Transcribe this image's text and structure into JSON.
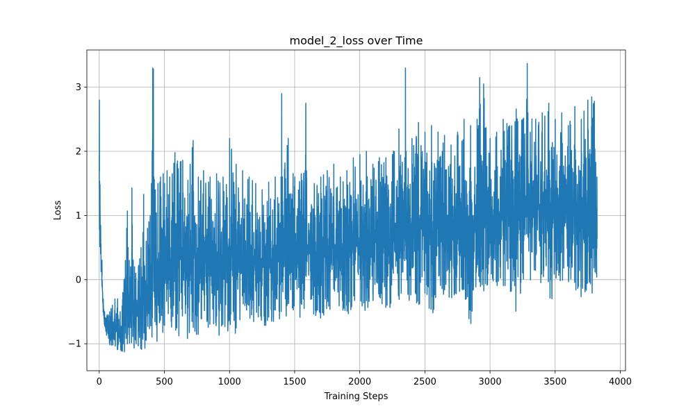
{
  "chart_data": {
    "type": "line",
    "title": "model_2_loss over Time",
    "xlabel": "Training Steps",
    "ylabel": "Loss",
    "xlim": [
      -95,
      4040
    ],
    "ylim": [
      -1.42,
      3.58
    ],
    "x_ticks": [
      0,
      500,
      1000,
      1500,
      2000,
      2500,
      3000,
      3500,
      4000
    ],
    "x_tick_labels": [
      "0",
      "500",
      "1000",
      "1500",
      "2000",
      "2500",
      "3000",
      "3500",
      "4000"
    ],
    "y_ticks": [
      -1,
      0,
      1,
      2,
      3
    ],
    "y_tick_labels": [
      "−1",
      "0",
      "1",
      "2",
      "3"
    ],
    "grid": true,
    "legend": "none",
    "color": "#1f77b4",
    "series": [
      {
        "x": [
          0,
          5,
          10,
          20,
          30,
          40,
          50,
          60,
          70,
          80,
          90,
          100,
          120,
          140,
          160,
          180,
          200,
          210,
          215,
          220,
          230,
          240,
          250,
          260,
          270,
          280,
          300,
          320,
          340,
          360,
          370,
          380,
          390,
          400,
          410,
          415,
          418,
          422,
          430,
          450,
          470,
          490,
          500,
          520,
          540,
          560,
          580,
          600,
          640,
          680,
          720,
          760,
          800,
          850,
          900,
          950,
          1000,
          1050,
          1100,
          1150,
          1200,
          1250,
          1300,
          1350,
          1395,
          1400,
          1405,
          1450,
          1500,
          1550,
          1580,
          1585,
          1590,
          1650,
          1700,
          1750,
          1800,
          1850,
          1900,
          1950,
          2000,
          2050,
          2100,
          2150,
          2200,
          2250,
          2300,
          2345,
          2350,
          2355,
          2400,
          2450,
          2500,
          2550,
          2600,
          2650,
          2700,
          2750,
          2800,
          2850,
          2900,
          2910,
          2920,
          2950,
          3000,
          3050,
          3100,
          3150,
          3200,
          3250,
          3280,
          3285,
          3290,
          3350,
          3400,
          3450,
          3500,
          3550,
          3600,
          3650,
          3700,
          3750,
          3780,
          3800,
          3820
        ],
        "y_hi": [
          2.8,
          1.48,
          0.85,
          0.3,
          -0.3,
          -0.5,
          -0.6,
          -0.55,
          -0.55,
          -0.5,
          -0.45,
          -0.4,
          -0.3,
          -0.3,
          -0.5,
          -0.2,
          0.3,
          0.8,
          1.07,
          0.5,
          0.3,
          0.2,
          1.43,
          0.3,
          0.2,
          0.1,
          0.2,
          0.5,
          1.33,
          0.6,
          0.8,
          0.9,
          1.0,
          1.5,
          3.3,
          3.28,
          1.6,
          1.56,
          1.4,
          1.5,
          1.6,
          1.65,
          1.5,
          1.7,
          1.6,
          1.65,
          1.98,
          1.85,
          1.86,
          1.55,
          2.17,
          1.6,
          1.7,
          1.6,
          1.65,
          1.6,
          2.2,
          1.8,
          1.7,
          1.6,
          1.5,
          1.4,
          1.52,
          1.6,
          1.6,
          2.9,
          1.6,
          2.2,
          1.6,
          1.65,
          1.7,
          2.75,
          1.7,
          1.5,
          1.6,
          1.7,
          1.8,
          1.6,
          1.7,
          1.9,
          1.95,
          2.0,
          1.8,
          1.9,
          1.9,
          1.95,
          2.35,
          1.9,
          3.3,
          2.0,
          2.2,
          2.45,
          2.3,
          2.4,
          2.3,
          2.25,
          2.1,
          2.3,
          2.5,
          2.4,
          2.5,
          2.4,
          3.15,
          3.05,
          2.2,
          2.3,
          2.5,
          2.4,
          2.66,
          2.5,
          2.7,
          3.37,
          2.6,
          2.5,
          2.6,
          2.75,
          2.5,
          2.6,
          2.4,
          2.7,
          2.5,
          2.8,
          2.85,
          2.78,
          1.6
        ],
        "y_lo": [
          0.95,
          0.4,
          0.2,
          -0.1,
          -0.6,
          -0.8,
          -0.9,
          -0.9,
          -1.0,
          -1.05,
          -1.0,
          -1.05,
          -1.1,
          -1.1,
          -1.12,
          -1.15,
          -1.18,
          -1.1,
          -1.15,
          -1.1,
          -1.1,
          -1.05,
          -1.0,
          -1.1,
          -1.15,
          -1.12,
          -1.1,
          -1.15,
          -1.1,
          -1.15,
          -1.16,
          -1.15,
          -1.1,
          -1.0,
          -0.9,
          -1.0,
          -0.95,
          -0.95,
          -0.9,
          -1.0,
          -0.95,
          -0.9,
          -0.85,
          -0.95,
          -0.9,
          -0.95,
          -0.9,
          -0.95,
          -0.95,
          -1.0,
          -0.95,
          -0.9,
          -0.85,
          -0.95,
          -0.9,
          -0.85,
          -0.8,
          -0.85,
          -0.8,
          -0.75,
          -0.8,
          -0.75,
          -0.7,
          -0.75,
          -0.7,
          -0.7,
          -0.75,
          -0.65,
          -0.7,
          -0.6,
          -0.65,
          -0.6,
          -0.55,
          -0.55,
          -0.6,
          -0.55,
          -0.5,
          -0.45,
          -0.55,
          -0.5,
          -0.6,
          -0.5,
          -0.45,
          -0.4,
          -0.45,
          -0.5,
          -0.35,
          -0.4,
          -0.3,
          -0.4,
          -0.35,
          -0.4,
          -0.3,
          -0.7,
          -0.25,
          -0.3,
          -0.35,
          -0.2,
          -0.3,
          -0.72,
          -0.3,
          -0.25,
          -0.2,
          -0.2,
          -0.15,
          -0.2,
          -0.1,
          -0.15,
          -0.63,
          -0.1,
          -0.15,
          -0.05,
          -0.1,
          -0.05,
          -0.1,
          -0.5,
          -0.1,
          -0.05,
          -0.1,
          -0.15,
          -0.33,
          -0.25,
          -0.2,
          -0.28,
          0.0
        ]
      }
    ]
  }
}
